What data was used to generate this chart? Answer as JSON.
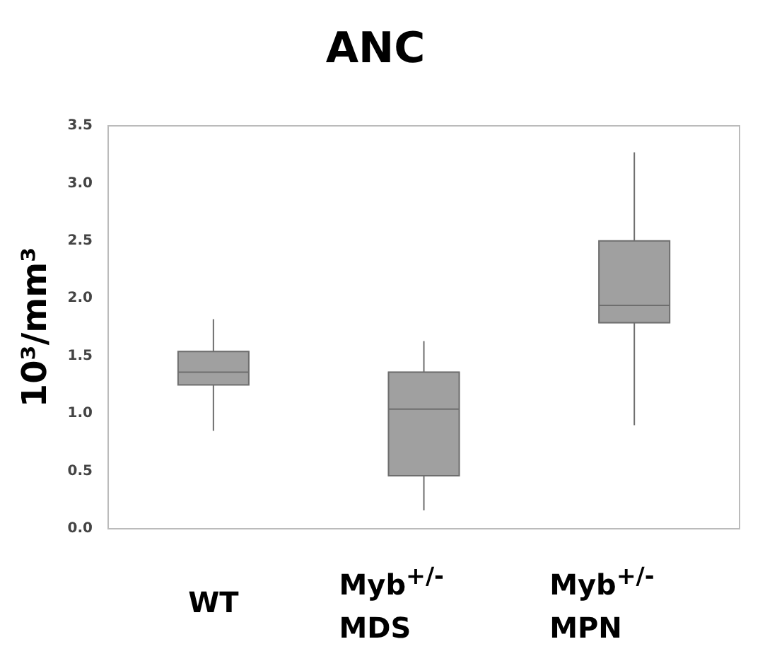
{
  "chart_data": {
    "type": "box",
    "title": "ANC",
    "ylabel": "10³/mm³",
    "categories": [
      "WT",
      "Myb$^{+/-}$ MDS",
      "Myb$^{+/-}$ MPN"
    ],
    "boxes": [
      {
        "low": 0.85,
        "q1": 1.25,
        "median": 1.36,
        "q3": 1.54,
        "high": 1.82
      },
      {
        "low": 0.16,
        "q1": 0.46,
        "median": 1.04,
        "q3": 1.36,
        "high": 1.63
      },
      {
        "low": 0.9,
        "q1": 1.79,
        "median": 1.94,
        "q3": 2.5,
        "high": 3.27
      }
    ],
    "color": "#a0a0a0",
    "ylim": [
      0,
      3.5
    ],
    "yticks": [
      {
        "value": 0,
        "label": "0.0"
      },
      0.5,
      {
        "value": 1,
        "label": "1.0"
      },
      1.5,
      {
        "value": 2,
        "label": "2.0"
      },
      2.5,
      {
        "value": 3,
        "label": "3.0"
      },
      3.5
    ],
    "grid": false,
    "legend": false
  }
}
